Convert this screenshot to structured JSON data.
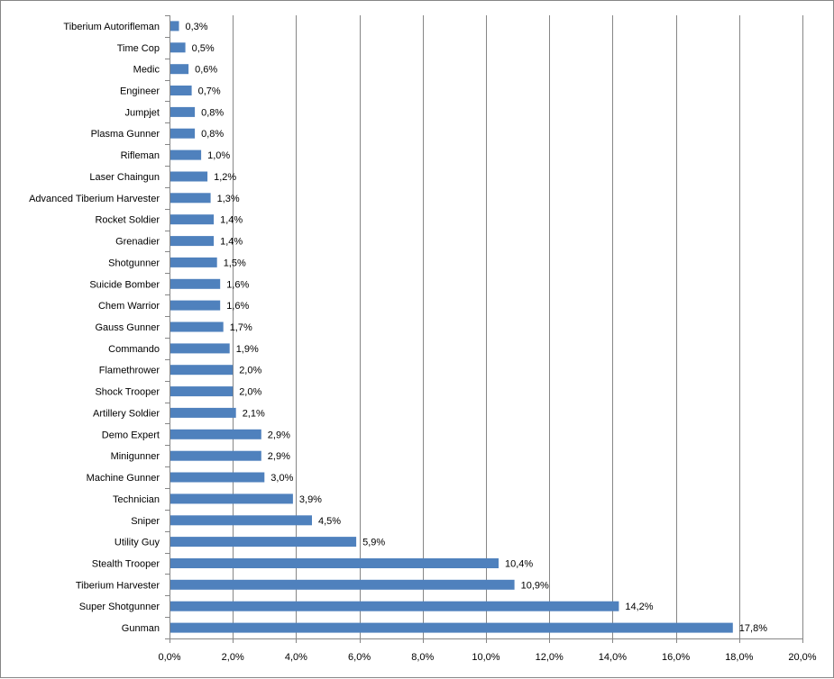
{
  "chart_data": {
    "type": "bar",
    "orientation": "horizontal",
    "title": "",
    "xlabel": "",
    "ylabel": "",
    "xlim": [
      0,
      20
    ],
    "tick_values": [
      0,
      2,
      4,
      6,
      8,
      10,
      12,
      14,
      16,
      18,
      20
    ],
    "tick_labels": [
      "0,0%",
      "2,0%",
      "4,0%",
      "6,0%",
      "8,0%",
      "10,0%",
      "12,0%",
      "14,0%",
      "16,0%",
      "18,0%",
      "20,0%"
    ],
    "grid": "vertical",
    "legend": "none",
    "bar_color": "#4f81bd",
    "categories": [
      "Tiberium Autorifleman",
      "Time Cop",
      "Medic",
      "Engineer",
      "Jumpjet",
      "Plasma Gunner",
      "Rifleman",
      "Laser Chaingun",
      "Advanced Tiberium Harvester",
      "Rocket Soldier",
      "Grenadier",
      "Shotgunner",
      "Suicide Bomber",
      "Chem Warrior",
      "Gauss Gunner",
      "Commando",
      "Flamethrower",
      "Shock Trooper",
      "Artillery Soldier",
      "Demo Expert",
      "Minigunner",
      "Machine Gunner",
      "Technician",
      "Sniper",
      "Utility Guy",
      "Stealth Trooper",
      "Tiberium Harvester",
      "Super Shotgunner",
      "Gunman"
    ],
    "values": [
      0.3,
      0.5,
      0.6,
      0.7,
      0.8,
      0.8,
      1.0,
      1.2,
      1.3,
      1.4,
      1.4,
      1.5,
      1.6,
      1.6,
      1.7,
      1.9,
      2.0,
      2.0,
      2.1,
      2.9,
      2.9,
      3.0,
      3.9,
      4.5,
      5.9,
      10.4,
      10.9,
      14.2,
      17.8
    ],
    "data_labels": [
      "0,3%",
      "0,5%",
      "0,6%",
      "0,7%",
      "0,8%",
      "0,8%",
      "1,0%",
      "1,2%",
      "1,3%",
      "1,4%",
      "1,4%",
      "1,5%",
      "1,6%",
      "1,6%",
      "1,7%",
      "1,9%",
      "2,0%",
      "2,0%",
      "2,1%",
      "2,9%",
      "2,9%",
      "3,0%",
      "3,9%",
      "4,5%",
      "5,9%",
      "10,4%",
      "10,9%",
      "14,2%",
      "17,8%"
    ]
  }
}
